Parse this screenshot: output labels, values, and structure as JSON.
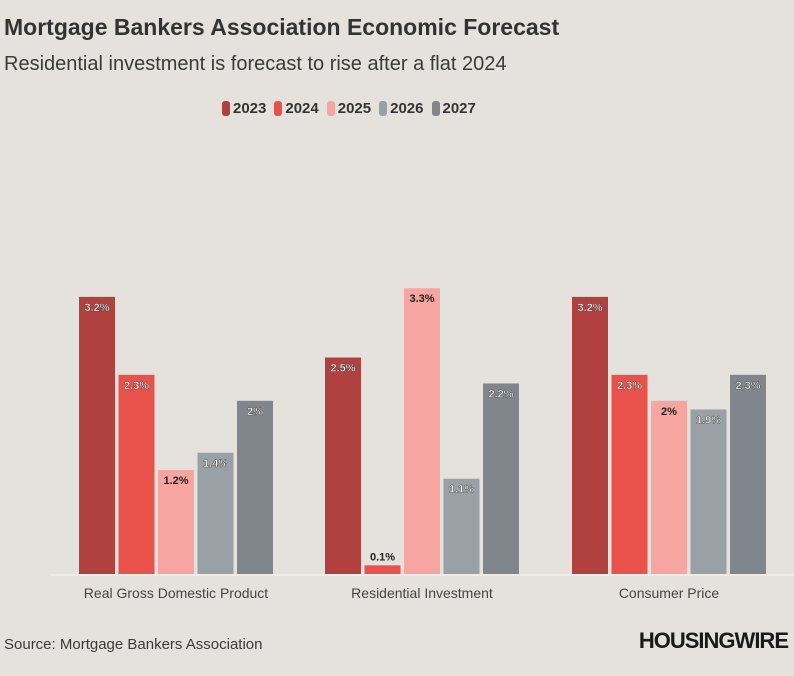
{
  "chart_data": {
    "type": "bar",
    "title": "Mortgage Bankers Association Economic Forecast",
    "subtitle": "Residential investment is forecast to rise after a flat 2024",
    "categories": [
      "Real Gross Domestic Product",
      "Residential Investment",
      "Consumer Price"
    ],
    "series": [
      {
        "name": "2023",
        "color": "#b0413e",
        "values": [
          3.2,
          2.5,
          3.2
        ]
      },
      {
        "name": "2024",
        "color": "#e8524a",
        "values": [
          2.3,
          0.1,
          2.3
        ]
      },
      {
        "name": "2025",
        "color": "#f7a5a1",
        "values": [
          1.2,
          3.3,
          2
        ]
      },
      {
        "name": "2026",
        "color": "#9aa1a6",
        "values": [
          1.4,
          1.1,
          1.9
        ]
      },
      {
        "name": "2027",
        "color": "#80868b",
        "values": [
          2,
          2.2,
          2.3
        ]
      }
    ],
    "data_labels": [
      [
        "3.2%",
        "2.5%",
        "3.2%"
      ],
      [
        "2.3%",
        "0.1%",
        "2.3%"
      ],
      [
        "1.2%",
        "3.3%",
        "2%"
      ],
      [
        "1.4%",
        "1.1%",
        "1.9%"
      ],
      [
        "2%",
        "2.2%",
        "2.3%"
      ]
    ],
    "ylim": [
      0,
      3.3
    ],
    "grid": false,
    "legend": "top-center",
    "source": "Source: Mortgage Bankers Association",
    "logo": "HOUSINGWIRE"
  }
}
